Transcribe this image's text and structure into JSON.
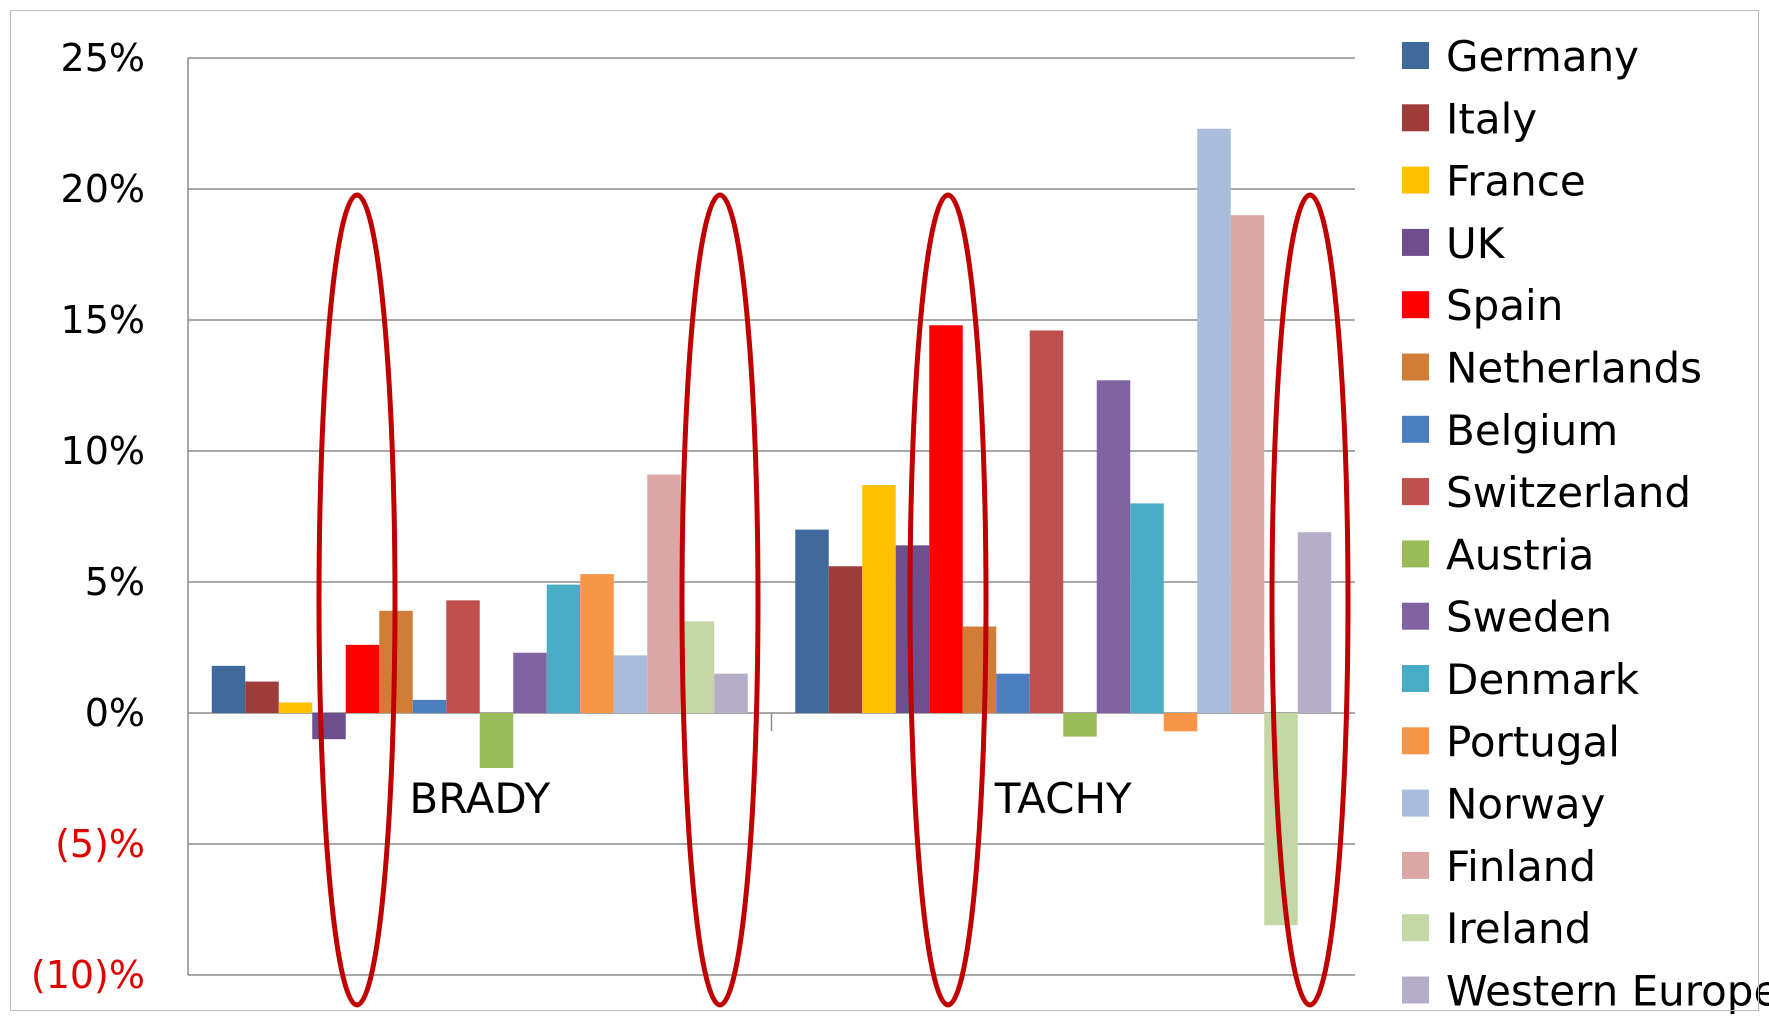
{
  "chart_data": {
    "type": "bar",
    "categories": [
      "BRADY",
      "TACHY"
    ],
    "ylim": [
      -10,
      25
    ],
    "yticks": [
      {
        "value": 25,
        "label": "25%",
        "color": "#000000"
      },
      {
        "value": 20,
        "label": "20%",
        "color": "#000000"
      },
      {
        "value": 15,
        "label": "15%",
        "color": "#000000"
      },
      {
        "value": 10,
        "label": "10%",
        "color": "#000000"
      },
      {
        "value": 5,
        "label": "5%",
        "color": "#000000"
      },
      {
        "value": 0,
        "label": "0%",
        "color": "#000000"
      },
      {
        "value": -5,
        "label": "(5)%",
        "color": "#e00000"
      },
      {
        "value": -10,
        "label": "(10)%",
        "color": "#e00000"
      }
    ],
    "grid": true,
    "legend_position": "right",
    "series": [
      {
        "name": "Germany",
        "color": "#3f6a9b",
        "values": [
          1.8,
          7.0
        ]
      },
      {
        "name": "Italy",
        "color": "#9e3c3a",
        "values": [
          1.2,
          5.6
        ]
      },
      {
        "name": "France",
        "color": "#ffc000",
        "values": [
          0.4,
          8.7
        ]
      },
      {
        "name": "UK",
        "color": "#6c4f8c",
        "values": [
          -1.0,
          6.4
        ]
      },
      {
        "name": "Spain",
        "color": "#ff0000",
        "values": [
          2.6,
          14.8
        ]
      },
      {
        "name": "Netherlands",
        "color": "#d27d37",
        "values": [
          3.9,
          3.3
        ]
      },
      {
        "name": "Belgium",
        "color": "#4a7ebf",
        "values": [
          0.5,
          1.5
        ]
      },
      {
        "name": "Switzerland",
        "color": "#c0504d",
        "values": [
          4.3,
          14.6
        ]
      },
      {
        "name": "Austria",
        "color": "#9bbb59",
        "values": [
          -2.1,
          -0.9
        ]
      },
      {
        "name": "Sweden",
        "color": "#8064a2",
        "values": [
          2.3,
          12.7
        ]
      },
      {
        "name": "Denmark",
        "color": "#4bacc6",
        "values": [
          4.9,
          8.0
        ]
      },
      {
        "name": "Portugal",
        "color": "#f79646",
        "values": [
          5.3,
          -0.7
        ]
      },
      {
        "name": "Norway",
        "color": "#a9bcdc",
        "values": [
          2.2,
          22.3
        ]
      },
      {
        "name": "Finland",
        "color": "#dba6a6",
        "values": [
          9.1,
          19.0
        ]
      },
      {
        "name": "Ireland",
        "color": "#c4d7a6",
        "values": [
          3.5,
          -8.1
        ]
      },
      {
        "name": "Western Europe",
        "color": "#b6adc9",
        "values": [
          1.5,
          6.9
        ]
      }
    ],
    "highlight_color": "#c00000"
  }
}
